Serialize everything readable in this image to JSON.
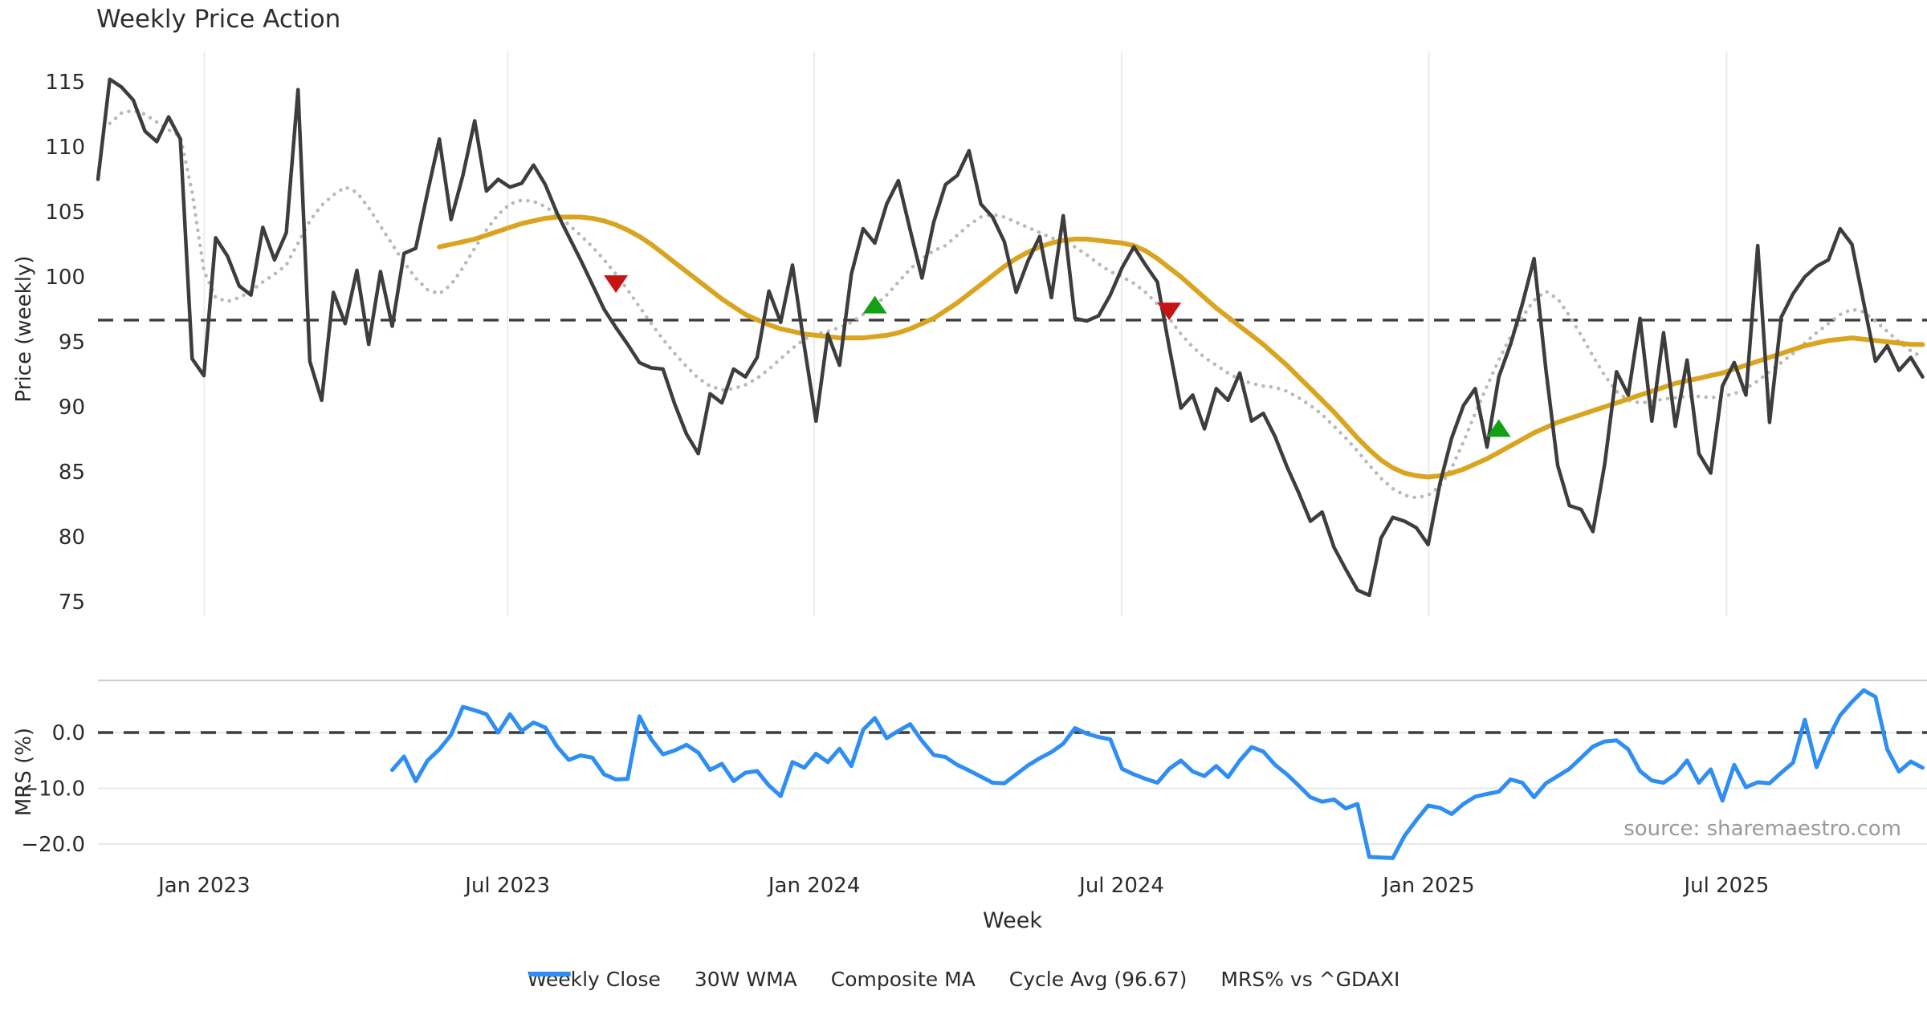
{
  "title": "Weekly Price Action",
  "source_note": "source: sharemaestro.com",
  "legend": [
    {
      "label": "Weekly Close",
      "swatch": "solid-line",
      "color": "#3d3d3d"
    },
    {
      "label": "30W WMA",
      "swatch": "solid-line",
      "color": "#d9a521"
    },
    {
      "label": "Composite MA",
      "swatch": "dotted-line",
      "color": "#b9b9b9"
    },
    {
      "label": "Cycle Avg (96.67)",
      "swatch": "dashed-line",
      "color": "#3d3d3d"
    },
    {
      "label": "MRS% vs ^GDAXI",
      "swatch": "solid-line",
      "color": "#2e8ef2"
    }
  ],
  "chart_data": {
    "type": "line",
    "title": "Weekly Price Action",
    "xlabel": "Week",
    "grid": "vertical-on-price-panel, horizontal-on-mrs-panel",
    "legend_position": "bottom-center",
    "xticks": [
      {
        "label": "Jan 2023",
        "week": 9.03
      },
      {
        "label": "Jul 2023",
        "week": 34.8
      },
      {
        "label": "Jan 2024",
        "week": 60.85
      },
      {
        "label": "Jul 2024",
        "week": 86.97
      },
      {
        "label": "Jan 2025",
        "week": 113.05
      },
      {
        "label": "Jul 2025",
        "week": 138.35
      }
    ],
    "panels": [
      {
        "name": "price",
        "ylabel": "Price (weekly)",
        "ylim": [
          73.9,
          117.3
        ],
        "yticks": [
          {
            "label": "115",
            "value": 115
          },
          {
            "label": "110",
            "value": 110
          },
          {
            "label": "105",
            "value": 105
          },
          {
            "label": "100",
            "value": 100
          },
          {
            "label": "95",
            "value": 95
          },
          {
            "label": "90",
            "value": 90
          },
          {
            "label": "85",
            "value": 85
          },
          {
            "label": "80",
            "value": 80
          },
          {
            "label": "75",
            "value": 75
          }
        ]
      },
      {
        "name": "mrs",
        "ylabel": "MRS (%)",
        "ylim": [
          -23.5,
          9.4
        ],
        "yticks": [
          {
            "label": "0.0",
            "value": 0
          },
          {
            "label": "−10.0",
            "value": -10
          },
          {
            "label": "−20.0",
            "value": -20
          }
        ]
      }
    ],
    "cycle_avg": 96.67,
    "mrs_zero_line": 0.0,
    "series": [
      {
        "name": "Weekly Close",
        "panel": "price",
        "style": "solid",
        "color": "#3d3d3d",
        "width": 4.5,
        "start_week": 0,
        "values": [
          107.5,
          115.2,
          114.6,
          113.6,
          111.2,
          110.4,
          112.3,
          110.6,
          93.7,
          92.4,
          103.0,
          101.6,
          99.3,
          98.6,
          103.8,
          101.3,
          103.4,
          114.4,
          93.5,
          90.5,
          98.8,
          96.4,
          100.5,
          94.8,
          100.4,
          96.2,
          101.8,
          102.2,
          106.5,
          110.6,
          104.4,
          107.8,
          112.0,
          106.6,
          107.5,
          106.9,
          107.2,
          108.6,
          107.1,
          104.9,
          103.1,
          101.3,
          99.4,
          97.5,
          96.1,
          94.8,
          93.4,
          93.0,
          92.9,
          90.2,
          87.9,
          86.4,
          91.0,
          90.3,
          92.9,
          92.3,
          93.8,
          98.9,
          96.5,
          100.9,
          94.7,
          88.9,
          95.6,
          93.2,
          100.2,
          103.7,
          102.6,
          105.6,
          107.4,
          103.6,
          99.9,
          104.2,
          107.1,
          107.8,
          109.7,
          105.6,
          104.6,
          102.7,
          98.8,
          101.2,
          103.1,
          98.4,
          104.7,
          96.8,
          96.6,
          97.0,
          98.6,
          100.7,
          102.3,
          100.9,
          99.6,
          94.6,
          89.9,
          90.9,
          88.3,
          91.4,
          90.5,
          92.6,
          88.9,
          89.5,
          87.7,
          85.4,
          83.4,
          81.2,
          81.9,
          79.2,
          77.5,
          75.9,
          75.5,
          79.9,
          81.5,
          81.2,
          80.7,
          79.4,
          84.1,
          87.6,
          90.1,
          91.4,
          86.9,
          92.3,
          94.8,
          97.9,
          101.4,
          92.9,
          85.5,
          82.4,
          82.1,
          80.4,
          85.6,
          92.7,
          90.9,
          96.8,
          88.9,
          95.7,
          88.5,
          93.6,
          86.4,
          84.9,
          91.6,
          93.4,
          90.9,
          102.4,
          88.8,
          96.9,
          98.7,
          100.0,
          100.8,
          101.3,
          103.7,
          102.5,
          98.0,
          93.5,
          94.7,
          92.8,
          93.8,
          92.3
        ]
      },
      {
        "name": "30W WMA",
        "panel": "price",
        "style": "solid",
        "color": "#d9a521",
        "width": 6,
        "start_week": 29,
        "values": [
          102.3,
          102.5,
          102.7,
          102.9,
          103.2,
          103.5,
          103.8,
          104.1,
          104.3,
          104.5,
          104.6,
          104.6,
          104.6,
          104.5,
          104.3,
          104.0,
          103.6,
          103.1,
          102.5,
          101.8,
          101.1,
          100.4,
          99.7,
          99.0,
          98.3,
          97.7,
          97.1,
          96.7,
          96.3,
          96.0,
          95.8,
          95.6,
          95.5,
          95.4,
          95.3,
          95.3,
          95.3,
          95.4,
          95.5,
          95.7,
          96.0,
          96.4,
          96.8,
          97.4,
          98.0,
          98.7,
          99.4,
          100.1,
          100.8,
          101.4,
          101.9,
          102.3,
          102.6,
          102.8,
          102.9,
          102.9,
          102.8,
          102.7,
          102.6,
          102.4,
          102.0,
          101.4,
          100.7,
          100.0,
          99.2,
          98.4,
          97.6,
          96.9,
          96.2,
          95.5,
          94.8,
          94.0,
          93.2,
          92.3,
          91.4,
          90.5,
          89.6,
          88.6,
          87.6,
          86.7,
          85.9,
          85.3,
          84.9,
          84.7,
          84.6,
          84.7,
          84.9,
          85.2,
          85.6,
          86.0,
          86.5,
          87.0,
          87.5,
          88.0,
          88.4,
          88.8,
          89.1,
          89.4,
          89.7,
          90.0,
          90.3,
          90.6,
          90.9,
          91.2,
          91.5,
          91.8,
          92.0,
          92.2,
          92.4,
          92.6,
          92.9,
          93.2,
          93.5,
          93.8,
          94.1,
          94.4,
          94.7,
          94.9,
          95.1,
          95.2,
          95.3,
          95.2,
          95.1,
          95.0,
          94.9,
          94.8,
          94.8
        ]
      },
      {
        "name": "Composite MA",
        "panel": "price",
        "style": "dotted",
        "color": "#b9b9b9",
        "width": 4.5,
        "start_week": 1,
        "values": [
          111.8,
          112.6,
          112.8,
          112.5,
          111.9,
          111.3,
          110.8,
          106.5,
          100.5,
          98.4,
          98.1,
          98.4,
          98.9,
          99.6,
          100.2,
          100.9,
          102.6,
          104.3,
          105.5,
          106.3,
          106.9,
          106.5,
          105.3,
          103.9,
          102.5,
          101.1,
          99.9,
          99.0,
          98.7,
          99.4,
          100.7,
          102.2,
          103.6,
          104.8,
          105.6,
          105.9,
          105.8,
          105.4,
          104.8,
          104.0,
          103.2,
          102.3,
          101.3,
          100.2,
          99.0,
          97.7,
          96.4,
          95.2,
          94.1,
          93.1,
          92.2,
          91.6,
          91.3,
          91.4,
          91.7,
          92.2,
          92.9,
          93.7,
          94.5,
          95.2,
          95.6,
          95.8,
          96.1,
          96.5,
          97.1,
          97.8,
          98.6,
          99.6,
          100.6,
          101.4,
          102.0,
          102.4,
          103.2,
          104.0,
          104.6,
          104.8,
          104.6,
          104.2,
          103.8,
          103.4,
          103.0,
          102.7,
          102.3,
          101.7,
          101.0,
          100.4,
          100.0,
          99.5,
          98.8,
          97.9,
          96.8,
          95.6,
          94.6,
          93.8,
          93.2,
          92.6,
          92.1,
          91.8,
          91.6,
          91.5,
          91.2,
          90.7,
          90.1,
          89.4,
          88.5,
          87.6,
          86.6,
          85.5,
          84.5,
          83.7,
          83.2,
          83.0,
          83.2,
          83.9,
          85.3,
          87.3,
          89.5,
          91.6,
          93.6,
          95.4,
          96.9,
          98.2,
          98.9,
          98.3,
          97.0,
          95.5,
          93.9,
          92.4,
          91.2,
          90.5,
          90.3,
          90.4,
          90.6,
          90.7,
          90.8,
          90.8,
          90.7,
          90.8,
          91.0,
          91.4,
          92.0,
          92.7,
          93.4,
          94.1,
          94.9,
          95.7,
          96.4,
          97.1,
          97.5,
          97.3,
          96.6,
          95.8,
          95.0,
          94.3,
          93.8
        ]
      },
      {
        "name": "Cycle Avg (96.67)",
        "panel": "price",
        "style": "dashed",
        "color": "#3d3d3d",
        "width": 3.4,
        "value": 96.67
      },
      {
        "name": "MRS% vs ^GDAXI",
        "panel": "mrs",
        "style": "solid",
        "color": "#2e8ef2",
        "width": 5,
        "start_week": 25,
        "values": [
          -6.7,
          -4.3,
          -8.7,
          -5.0,
          -3.0,
          -0.4,
          4.6,
          4.0,
          3.3,
          0.0,
          3.3,
          0.3,
          1.8,
          0.9,
          -2.5,
          -4.9,
          -4.1,
          -4.5,
          -7.5,
          -8.4,
          -8.3,
          2.9,
          -1.2,
          -3.9,
          -3.2,
          -2.2,
          -3.6,
          -6.7,
          -5.6,
          -8.7,
          -7.2,
          -6.9,
          -9.5,
          -11.4,
          -5.3,
          -6.3,
          -3.8,
          -5.3,
          -2.9,
          -6.0,
          0.5,
          2.6,
          -1.0,
          0.3,
          1.5,
          -1.5,
          -4.0,
          -4.4,
          -5.8,
          -6.8,
          -7.9,
          -9.0,
          -9.1,
          -7.5,
          -5.9,
          -4.6,
          -3.5,
          -2.0,
          0.8,
          -0.2,
          -0.8,
          -1.2,
          -6.5,
          -7.5,
          -8.3,
          -9.0,
          -6.5,
          -5.0,
          -7.0,
          -7.8,
          -6.0,
          -8.0,
          -5.0,
          -2.6,
          -3.4,
          -5.8,
          -7.5,
          -9.5,
          -11.6,
          -12.4,
          -12.0,
          -13.6,
          -12.8,
          -22.3,
          -22.4,
          -22.5,
          -18.5,
          -15.7,
          -13.1,
          -13.5,
          -14.6,
          -12.8,
          -11.5,
          -11.0,
          -10.6,
          -8.4,
          -9.0,
          -11.6,
          -9.1,
          -7.8,
          -6.5,
          -4.5,
          -2.5,
          -1.6,
          -1.4,
          -3.0,
          -6.9,
          -8.6,
          -9.0,
          -7.5,
          -5.0,
          -9.0,
          -6.6,
          -12.2,
          -5.8,
          -9.8,
          -8.9,
          -9.1,
          -7.2,
          -5.4,
          2.3,
          -6.2,
          -1.0,
          3.1,
          5.5,
          7.6,
          6.4,
          -3.0,
          -7.0,
          -5.2,
          -6.3
        ]
      }
    ],
    "markers": {
      "sell": {
        "shape": "triangle-down",
        "color": "#c81414",
        "points": [
          {
            "week": 44,
            "price": 99.5
          },
          {
            "week": 91,
            "price": 97.4
          }
        ]
      },
      "buy": {
        "shape": "triangle-up",
        "color": "#14a014",
        "points": [
          {
            "week": 66,
            "price": 97.8
          },
          {
            "week": 119,
            "price": 88.3
          }
        ]
      }
    }
  }
}
